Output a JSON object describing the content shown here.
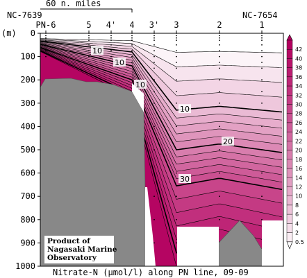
{
  "chart_data": {
    "type": "contour-section",
    "title": "Nitrate-N (μmol/l) along PN line, 09-09",
    "ylabel": "(m)",
    "ylim": [
      0,
      1000
    ],
    "y_ticks": [
      0,
      100,
      200,
      300,
      400,
      500,
      600,
      700,
      800,
      900,
      1000
    ],
    "scale_bar_label": "60 n. miles",
    "stations": [
      "PN-6",
      "5",
      "4'",
      "4",
      "3'",
      "3",
      "2",
      "1"
    ],
    "station_ids": {
      "left": "NC-7639",
      "right": "NC-7654"
    },
    "contour_labels": [
      {
        "value": "10",
        "station": "5",
        "depth": 75
      },
      {
        "value": "10",
        "station": "4'",
        "depth": 125
      },
      {
        "value": "10",
        "station": "4",
        "depth": 220
      },
      {
        "value": "10",
        "station": "3",
        "depth": 325
      },
      {
        "value": "20",
        "station": "2",
        "depth": 465
      },
      {
        "value": "30",
        "station": "3",
        "depth": 625
      }
    ],
    "isoline_depth_at_station_1": {
      "10": 330,
      "20": 500,
      "30": 655
    },
    "colorbar": {
      "levels": [
        "0.5",
        "2",
        "4",
        "6",
        "8",
        "10",
        "12",
        "14",
        "16",
        "18",
        "20",
        "22",
        "24",
        "26",
        "28",
        "30",
        "32",
        "34",
        "36",
        "38",
        "40",
        "42"
      ],
      "color_low": "#ffffff",
      "color_high": "#b3005f"
    },
    "credit": [
      "Product of",
      "Nagasaki Marine",
      "Observatory"
    ]
  }
}
